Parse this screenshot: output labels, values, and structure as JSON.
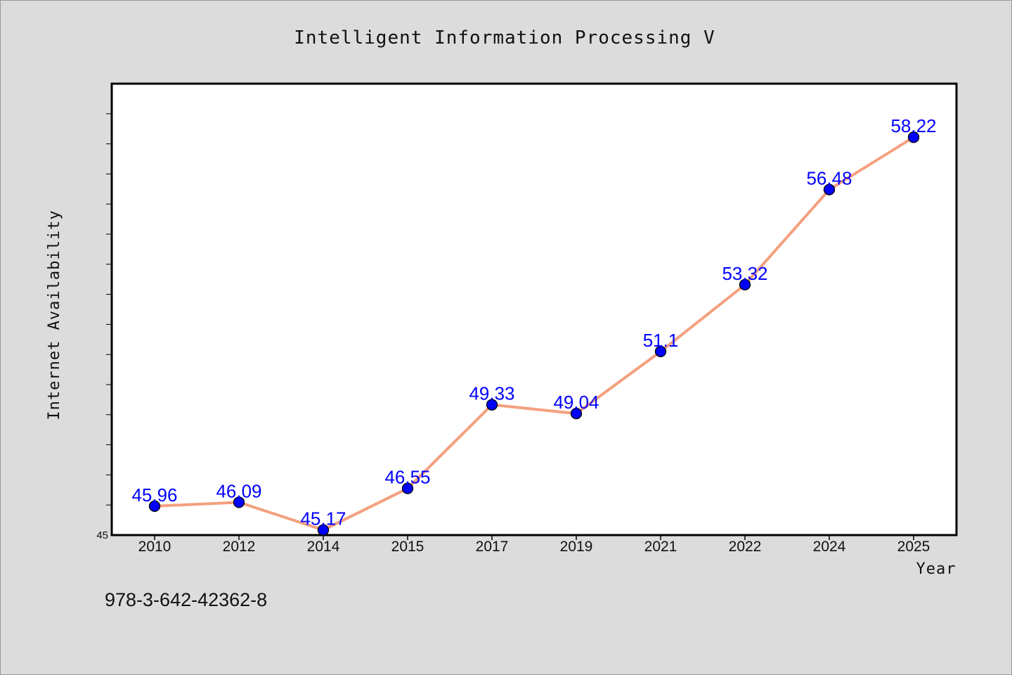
{
  "chart_data": {
    "type": "line",
    "title": "Intelligent Information Processing V",
    "xlabel": "Year",
    "ylabel": "Internet Availability",
    "categories": [
      "2010",
      "2012",
      "2014",
      "2015",
      "2017",
      "2019",
      "2021",
      "2022",
      "2024",
      "2025"
    ],
    "series": [
      {
        "values": [
          45.96,
          46.09,
          45.17,
          46.55,
          49.33,
          49.04,
          51.1,
          53.32,
          56.48,
          58.22
        ],
        "data_labels": [
          "45.96",
          "46.09",
          "45.17",
          "46.55",
          "49.33",
          "49.04",
          "51.1",
          "53.32",
          "56.48",
          "58.22"
        ],
        "line_color": "#f4a07f",
        "marker_color": "#0000ff"
      }
    ],
    "ylim": [
      45,
      60
    ],
    "y_tick_labels": [
      "45"
    ],
    "grid": false,
    "legend": "none",
    "background": "#dcdcdc",
    "plot_background": "#ffffff"
  },
  "footer": {
    "isbn": "978-3-642-42362-8"
  }
}
